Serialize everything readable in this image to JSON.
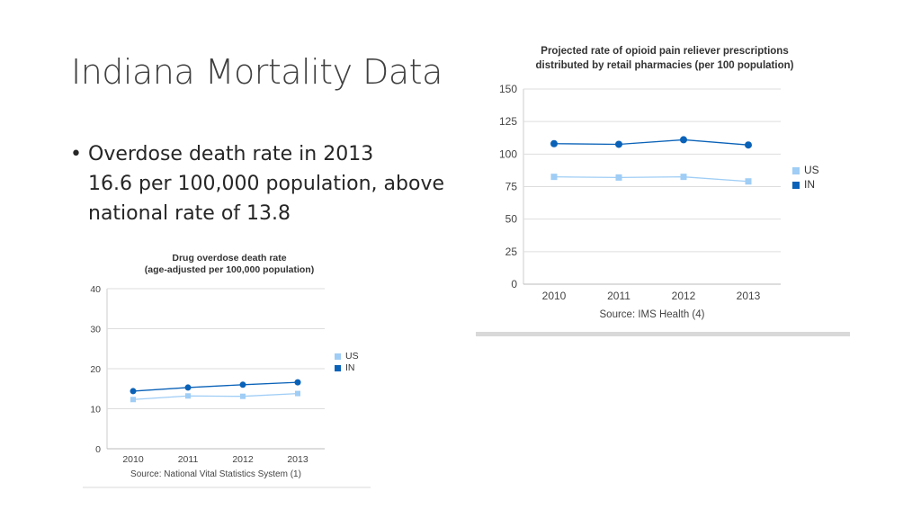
{
  "slide": {
    "title": "Indiana Mortality Data",
    "bullet": {
      "line1": "Overdose death rate in 2013",
      "line2": "16.6 per 100,000 population, above",
      "line3": "national rate of 13.8"
    }
  },
  "chart_data": [
    {
      "type": "line",
      "title_line1": "Drug overdose death rate",
      "title_line2": "(age-adjusted per 100,000 population)",
      "categories": [
        "2010",
        "2011",
        "2012",
        "2013"
      ],
      "ylim": [
        0,
        40
      ],
      "yticks": [
        0,
        10,
        20,
        30,
        40
      ],
      "grid": true,
      "legend_position": "right",
      "source": "Source: National Vital Statistics System (1)",
      "series": [
        {
          "name": "US",
          "color": "#9fcdf5",
          "marker": "square",
          "values": [
            12.3,
            13.2,
            13.1,
            13.8
          ]
        },
        {
          "name": "IN",
          "color": "#0a62b8",
          "marker": "circle",
          "values": [
            14.4,
            15.3,
            16.0,
            16.6
          ]
        }
      ]
    },
    {
      "type": "line",
      "title_line1": "Projected rate of opioid pain reliever prescriptions",
      "title_line2": "distributed by retail pharmacies (per 100 population)",
      "categories": [
        "2010",
        "2011",
        "2012",
        "2013"
      ],
      "ylim": [
        0,
        150
      ],
      "yticks": [
        0,
        25,
        50,
        75,
        100,
        125,
        150
      ],
      "grid": true,
      "legend_position": "right",
      "source": "Source: IMS Health (4)",
      "series": [
        {
          "name": "US",
          "color": "#9fcdf5",
          "marker": "square",
          "values": [
            82.5,
            82.0,
            82.5,
            79.0
          ]
        },
        {
          "name": "IN",
          "color": "#0a62b8",
          "marker": "circle",
          "values": [
            108.0,
            107.5,
            111.0,
            107.0
          ]
        }
      ]
    }
  ]
}
